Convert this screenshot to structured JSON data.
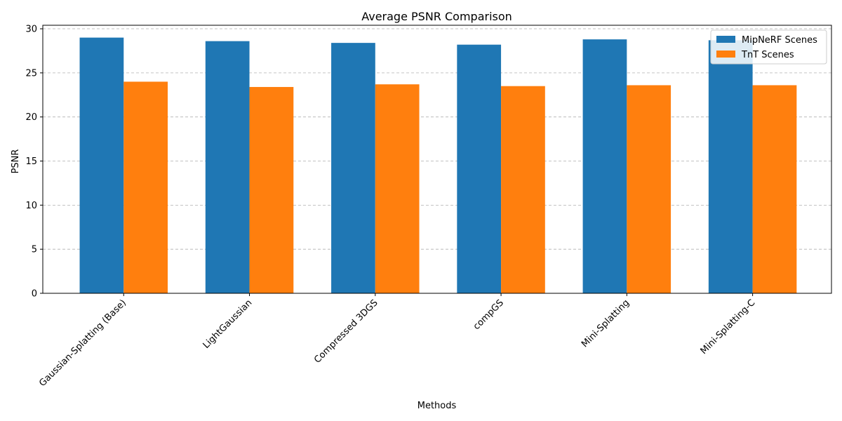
{
  "chart_data": {
    "type": "bar",
    "title": "Average PSNR Comparison",
    "xlabel": "Methods",
    "ylabel": "PSNR",
    "categories": [
      "Gaussian-Splatting (Base)",
      "LightGaussian",
      "Compressed 3DGS",
      "compGS",
      "Mini-Splatting",
      "Mini-Splatting-C"
    ],
    "series": [
      {
        "name": "MipNeRF Scenes",
        "color": "#1f77b4",
        "values": [
          29.0,
          28.6,
          28.4,
          28.2,
          28.8,
          28.7
        ]
      },
      {
        "name": "TnT Scenes",
        "color": "#ff7f0e",
        "values": [
          24.0,
          23.4,
          23.7,
          23.5,
          23.6,
          23.6
        ]
      }
    ],
    "ylim": [
      0,
      30.4
    ],
    "yticks": [
      0,
      5,
      10,
      15,
      20,
      25,
      30
    ],
    "grid": "y-dashed",
    "legend_position": "top-right"
  }
}
